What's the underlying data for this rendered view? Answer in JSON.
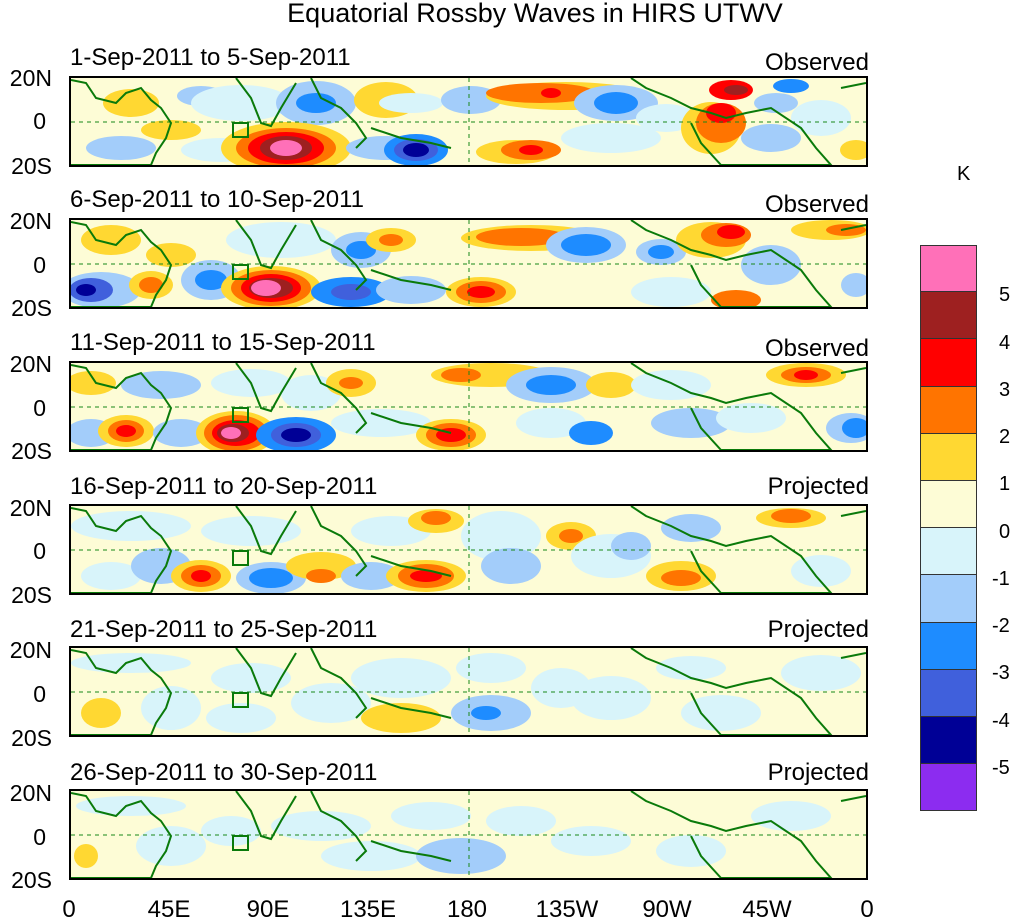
{
  "title": "Equatorial Rossby Waves in HIRS UTWV",
  "unit": "K",
  "y_axis_ticks": [
    "20N",
    "0",
    "20S"
  ],
  "x_axis_ticks": [
    "0",
    "45E",
    "90E",
    "135E",
    "180",
    "135W",
    "90W",
    "45W",
    "0"
  ],
  "panels": [
    {
      "date_range": "1-Sep-2011 to 5-Sep-2011",
      "type": "Observed"
    },
    {
      "date_range": "6-Sep-2011 to 10-Sep-2011",
      "type": "Observed"
    },
    {
      "date_range": "11-Sep-2011 to 15-Sep-2011",
      "type": "Observed"
    },
    {
      "date_range": "16-Sep-2011 to 20-Sep-2011",
      "type": "Projected"
    },
    {
      "date_range": "21-Sep-2011 to 25-Sep-2011",
      "type": "Projected"
    },
    {
      "date_range": "26-Sep-2011 to 30-Sep-2011",
      "type": "Projected"
    }
  ],
  "colorbar": {
    "labels": [
      "5",
      "4",
      "3",
      "2",
      "1",
      "0",
      "-1",
      "-2",
      "-3",
      "-4",
      "-5"
    ],
    "colors": [
      "#ff70b8",
      "#9e2020",
      "#ff0000",
      "#ff7400",
      "#ffd832",
      "#fdfcd6",
      "#d8f4fa",
      "#a3cdfa",
      "#1e8cff",
      "#4060dc",
      "#000096",
      "#8c2cf0"
    ]
  },
  "map_colors": {
    "land": "#0a7a0a",
    "grid": "#188818"
  }
}
